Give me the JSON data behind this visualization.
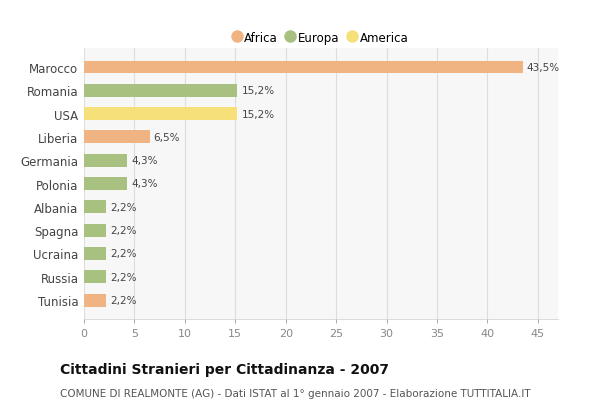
{
  "categories": [
    "Marocco",
    "Romania",
    "USA",
    "Liberia",
    "Germania",
    "Polonia",
    "Albania",
    "Spagna",
    "Ucraina",
    "Russia",
    "Tunisia"
  ],
  "values": [
    43.5,
    15.2,
    15.2,
    6.5,
    4.3,
    4.3,
    2.2,
    2.2,
    2.2,
    2.2,
    2.2
  ],
  "labels": [
    "43,5%",
    "15,2%",
    "15,2%",
    "6,5%",
    "4,3%",
    "4,3%",
    "2,2%",
    "2,2%",
    "2,2%",
    "2,2%",
    "2,2%"
  ],
  "colors": [
    "#f0b482",
    "#a8c080",
    "#f5e07a",
    "#f0b482",
    "#a8c080",
    "#a8c080",
    "#a8c080",
    "#a8c080",
    "#a8c080",
    "#a8c080",
    "#f0b482"
  ],
  "legend_labels": [
    "Africa",
    "Europa",
    "America"
  ],
  "legend_colors": [
    "#f0b482",
    "#a8c080",
    "#f5e07a"
  ],
  "title": "Cittadini Stranieri per Cittadinanza - 2007",
  "subtitle": "COMUNE DI REALMONTE (AG) - Dati ISTAT al 1° gennaio 2007 - Elaborazione TUTTITALIA.IT",
  "xlim": [
    0,
    47
  ],
  "xticks": [
    0,
    5,
    10,
    15,
    20,
    25,
    30,
    35,
    40,
    45
  ],
  "background_color": "#ffffff",
  "plot_bg_color": "#f7f7f7",
  "title_fontsize": 10,
  "subtitle_fontsize": 7.5
}
